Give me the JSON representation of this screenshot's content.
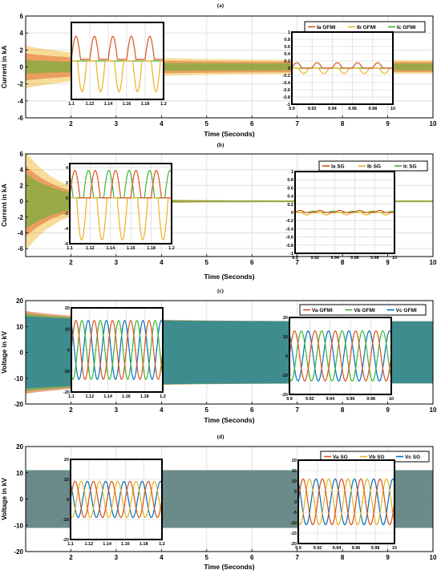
{
  "chart_data": [
    {
      "type": "line",
      "subplot_label": "(a)",
      "xlabel": "Time (Seconds)",
      "ylabel": "Current in kA",
      "xlim": [
        1,
        10
      ],
      "ylim": [
        -6,
        6
      ],
      "x_ticks": [
        "2",
        "3",
        "4",
        "5",
        "6",
        "7",
        "8",
        "9",
        "10"
      ],
      "y_ticks": [
        "-6",
        "-4",
        "-2",
        "0",
        "2",
        "4",
        "6"
      ],
      "grid": true,
      "legend_position": "top-right",
      "series": [
        {
          "name": "Ia GFMI",
          "color": "#d95319",
          "start_amplitude": 1.6,
          "steady_amplitude": 0.6
        },
        {
          "name": "Ib GFMI",
          "color": "#edb120",
          "start_amplitude": 2.5,
          "steady_amplitude": 0.8
        },
        {
          "name": "Ic GFMI",
          "color": "#3cb52c",
          "start_amplitude": 0.8,
          "steady_amplitude": 0.4
        }
      ],
      "insets": [
        {
          "xlim": [
            1.1,
            1.2
          ],
          "ylim": [
            -2.5,
            2.5
          ],
          "x_ticks": [
            "1.1",
            "1.12",
            "1.14",
            "1.16",
            "1.18",
            "1.2"
          ],
          "y_ticks": [],
          "amplitudes": [
            1.5,
            2.0,
            0.0
          ]
        },
        {
          "xlim": [
            9.9,
            10
          ],
          "ylim": [
            -1,
            1
          ],
          "x_ticks": [
            "9.9",
            "9.92",
            "9.94",
            "9.96",
            "9.98",
            "10"
          ],
          "y_ticks": [
            "-1",
            "-0.8",
            "-0.6",
            "-0.4",
            "-0.2",
            "0",
            "0.2",
            "0.4",
            "0.6",
            "0.8",
            "1"
          ],
          "amplitudes": [
            0.15,
            0.15,
            0.0
          ]
        }
      ]
    },
    {
      "type": "line",
      "subplot_label": "(b)",
      "xlabel": "Time (Seconds)",
      "ylabel": "Current in kA",
      "xlim": [
        1,
        10
      ],
      "ylim": [
        -7,
        6
      ],
      "x_ticks": [
        "2",
        "3",
        "4",
        "5",
        "6",
        "7",
        "8",
        "9",
        "10"
      ],
      "y_ticks": [
        "-6",
        "-4",
        "-2",
        "0",
        "2",
        "4",
        "6"
      ],
      "grid": true,
      "legend_position": "top-right",
      "series": [
        {
          "name": "Ia SG",
          "color": "#d95319",
          "start_amplitude": 4.5,
          "steady_amplitude": 0.1
        },
        {
          "name": "Ib SG",
          "color": "#edb120",
          "start_amplitude": 6.3,
          "steady_amplitude": 0.1
        },
        {
          "name": "Ic SG",
          "color": "#3cb52c",
          "start_amplitude": 3.5,
          "steady_amplitude": 0.1
        }
      ],
      "insets": [
        {
          "xlim": [
            1.1,
            1.2
          ],
          "ylim": [
            -6,
            4.5
          ],
          "x_ticks": [
            "1.1",
            "1.12",
            "1.14",
            "1.16",
            "1.18",
            "1.2"
          ],
          "y_ticks": [
            "-6",
            "-4",
            "-2",
            "0",
            "2",
            "4"
          ],
          "amplitudes": [
            3.6,
            5.5,
            3.6
          ]
        },
        {
          "xlim": [
            9.9,
            10
          ],
          "ylim": [
            -1,
            1
          ],
          "x_ticks": [
            "9.9",
            "9.92",
            "9.94",
            "9.96",
            "9.98",
            "10"
          ],
          "y_ticks": [
            "-1",
            "-0.8",
            "-0.6",
            "-0.4",
            "-0.2",
            "0",
            "0.2",
            "0.4",
            "0.6",
            "0.8",
            "1"
          ],
          "amplitudes": [
            0.05,
            0.06,
            0.03
          ]
        }
      ]
    },
    {
      "type": "line",
      "subplot_label": "(c)",
      "xlabel": "Time (Seconds)",
      "ylabel": "Voltage in kV",
      "xlim": [
        1,
        10
      ],
      "ylim": [
        -20,
        20
      ],
      "x_ticks": [
        "2",
        "3",
        "4",
        "5",
        "6",
        "7",
        "8",
        "9",
        "10"
      ],
      "y_ticks": [
        "-20",
        "-10",
        "0",
        "10",
        "20"
      ],
      "grid": true,
      "legend_position": "top-right",
      "series": [
        {
          "name": "Va GFMI",
          "color": "#d95319",
          "start_amplitude": 16,
          "steady_amplitude": 12
        },
        {
          "name": "Vb GFMI",
          "color": "#3cb52c",
          "start_amplitude": 15,
          "steady_amplitude": 12
        },
        {
          "name": "Vc GFMI",
          "color": "#0072bd",
          "start_amplitude": 14,
          "steady_amplitude": 12
        }
      ],
      "insets": [
        {
          "xlim": [
            1.1,
            1.2
          ],
          "ylim": [
            -20,
            20
          ],
          "x_ticks": [
            "1.1",
            "1.12",
            "1.14",
            "1.16",
            "1.18",
            "1.2"
          ],
          "y_ticks": [
            "-20",
            "-10",
            "0",
            "10",
            "20"
          ],
          "amplitudes": [
            14,
            14,
            14
          ]
        },
        {
          "xlim": [
            9.9,
            10
          ],
          "ylim": [
            -20,
            20
          ],
          "x_ticks": [
            "9.9",
            "9.92",
            "9.94",
            "9.96",
            "9.98",
            "10"
          ],
          "y_ticks": [
            "-20",
            "-10",
            "0",
            "10",
            "20"
          ],
          "amplitudes": [
            13,
            13,
            13
          ]
        }
      ]
    },
    {
      "type": "line",
      "subplot_label": "(d)",
      "xlabel": "Time (Seconds)",
      "ylabel": "Voltage in kV",
      "xlim": [
        1,
        10
      ],
      "ylim": [
        -20,
        20
      ],
      "x_ticks": [
        "2",
        "3",
        "4",
        "5",
        "6",
        "7",
        "8",
        "9",
        "10"
      ],
      "y_ticks": [
        "-20",
        "-10",
        "0",
        "10",
        "20"
      ],
      "grid": true,
      "legend_position": "top-right",
      "series": [
        {
          "name": "Va SG",
          "color": "#d95319",
          "start_amplitude": 11,
          "steady_amplitude": 11
        },
        {
          "name": "Vb SG",
          "color": "#edb120",
          "start_amplitude": 11,
          "steady_amplitude": 11
        },
        {
          "name": "Vc SG",
          "color": "#0072bd",
          "start_amplitude": 11,
          "steady_amplitude": 11
        }
      ],
      "insets": [
        {
          "xlim": [
            1.1,
            1.2
          ],
          "ylim": [
            -20,
            20
          ],
          "x_ticks": [
            "1.1",
            "1.12",
            "1.14",
            "1.16",
            "1.18",
            "1.2"
          ],
          "y_ticks": [
            "-20",
            "-10",
            "0",
            "10",
            "20"
          ],
          "amplitudes": [
            9,
            9,
            9
          ]
        },
        {
          "xlim": [
            9.9,
            10
          ],
          "ylim": [
            -20,
            20
          ],
          "x_ticks": [
            "9.9",
            "9.92",
            "9.94",
            "9.96",
            "9.98",
            "10"
          ],
          "y_ticks": [
            "-20",
            "-15",
            "-10",
            "-5",
            "0",
            "5",
            "10",
            "15",
            "20"
          ],
          "amplitudes": [
            11,
            11,
            11
          ]
        }
      ]
    }
  ]
}
